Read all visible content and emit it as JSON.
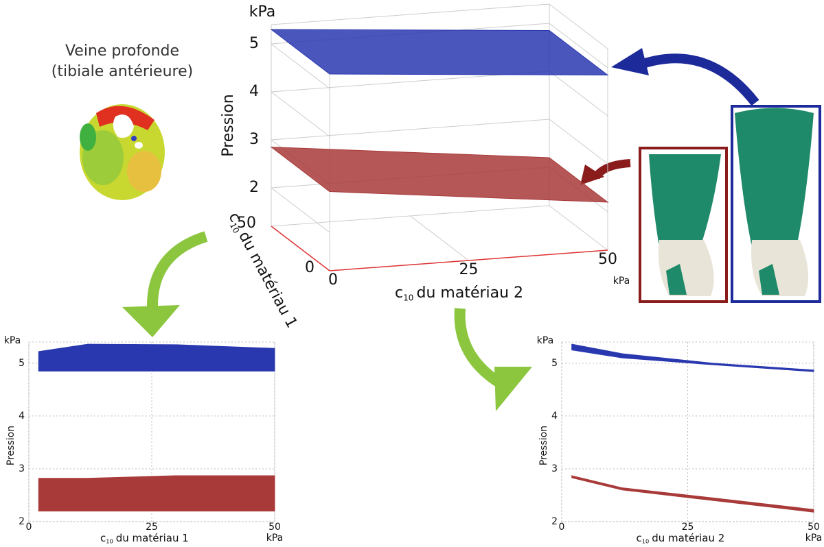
{
  "caption": {
    "title": "Veine profonde",
    "subtitle": "(tibiale antérieure)"
  },
  "chart_data": [
    {
      "type": "surface3d",
      "z_label": "Pression",
      "z_unit": "kPa",
      "x_label": {
        "symbol": "c",
        "subscript": "10",
        "text": "du matériau 2"
      },
      "x_unit": "kPa",
      "y_label": {
        "symbol": "c",
        "subscript": "10",
        "text": "du matériau 1"
      },
      "x": [
        0,
        50
      ],
      "y": [
        0,
        50
      ],
      "xlim": [
        0,
        50
      ],
      "xticks": [
        0,
        25,
        50
      ],
      "ylim": [
        0,
        50
      ],
      "yticks": [
        0,
        50
      ],
      "zlim": [
        1.2,
        5.4
      ],
      "zticks": [
        2,
        3,
        4,
        5
      ],
      "grid": true,
      "series": [
        {
          "color": "#2a38b0",
          "values": [
            [
              5.3,
              4.85
            ],
            [
              5.3,
              4.85
            ]
          ]
        },
        {
          "color": "#a83a3a",
          "values": [
            [
              2.85,
              2.2
            ],
            [
              2.85,
              2.2
            ]
          ]
        }
      ]
    },
    {
      "type": "band",
      "y_label": "Pression",
      "y_unit": "kPa",
      "x_label": {
        "symbol": "c",
        "subscript": "10",
        "text": "du matériau 1"
      },
      "x_unit": "kPa",
      "x": [
        2,
        12,
        30,
        50
      ],
      "xlim": [
        0,
        50
      ],
      "xticks": [
        0,
        25,
        50
      ],
      "ylim": [
        2,
        5.4
      ],
      "yticks": [
        2,
        3,
        4,
        5
      ],
      "grid": true,
      "series": [
        {
          "color": "#2a38b0",
          "lower": [
            4.85,
            4.85,
            4.85,
            4.85
          ],
          "upper": [
            5.22,
            5.36,
            5.35,
            5.28
          ]
        },
        {
          "color": "#a83a3a",
          "lower": [
            2.2,
            2.2,
            2.2,
            2.2
          ],
          "upper": [
            2.82,
            2.82,
            2.87,
            2.87
          ]
        }
      ]
    },
    {
      "type": "band",
      "y_label": "Pression",
      "y_unit": "kPa",
      "x_label": {
        "symbol": "c",
        "subscript": "10",
        "text": "du matériau 2"
      },
      "x_unit": "kPa",
      "x": [
        2,
        12,
        30,
        50
      ],
      "xlim": [
        0,
        50
      ],
      "xticks": [
        0,
        25,
        50
      ],
      "ylim": [
        2,
        5.4
      ],
      "yticks": [
        2,
        3,
        4,
        5
      ],
      "grid": true,
      "series": [
        {
          "color": "#2a38b0",
          "lower": [
            5.25,
            5.1,
            4.97,
            4.84
          ],
          "upper": [
            5.36,
            5.18,
            5.0,
            4.87
          ]
        },
        {
          "color": "#a83a3a",
          "lower": [
            2.83,
            2.6,
            2.4,
            2.18
          ],
          "upper": [
            2.87,
            2.64,
            2.45,
            2.23
          ]
        }
      ]
    }
  ]
}
